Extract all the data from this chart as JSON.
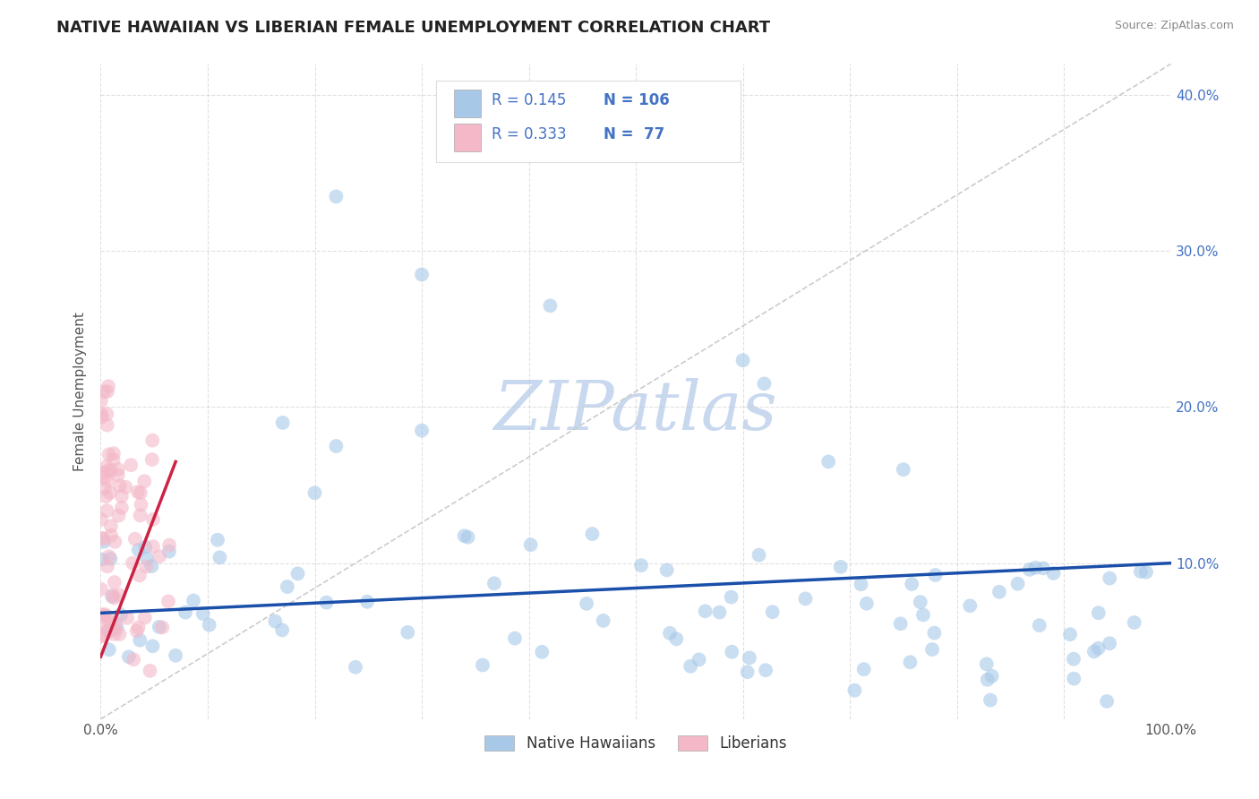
{
  "title": "NATIVE HAWAIIAN VS LIBERIAN FEMALE UNEMPLOYMENT CORRELATION CHART",
  "source_text": "Source: ZipAtlas.com",
  "ylabel": "Female Unemployment",
  "watermark": "ZIPatlas",
  "blue_R": 0.145,
  "blue_N": 106,
  "pink_R": 0.333,
  "pink_N": 77,
  "blue_color": "#a8c8e8",
  "blue_edge": "#6aaad4",
  "pink_color": "#f4b8c8",
  "pink_edge": "#e87890",
  "trend_blue": "#1a4faa",
  "trend_pink": "#cc2244",
  "trend_diag_color": "#cccccc",
  "xlim": [
    0,
    1.0
  ],
  "ylim": [
    0,
    0.42
  ],
  "ytick_labels": [
    "",
    "10.0%",
    "20.0%",
    "30.0%",
    "40.0%"
  ],
  "ytick_color": "#4472c4",
  "xtick_labels": [
    "0.0%",
    "",
    "",
    "",
    "",
    "",
    "",
    "",
    "",
    "",
    "100.0%"
  ],
  "title_fontsize": 13,
  "label_fontsize": 11,
  "tick_fontsize": 11,
  "legend_fontsize": 12,
  "marker_size": 130,
  "marker_alpha": 0.6,
  "watermark_fontsize": 55,
  "watermark_color": "#c8d8ee",
  "watermark_alpha": 0.6,
  "background_color": "#ffffff",
  "grid_color": "#cccccc",
  "legend_label_blue": "Native Hawaiians",
  "legend_label_pink": "Liberians",
  "legend_text_color": "#4472c4"
}
